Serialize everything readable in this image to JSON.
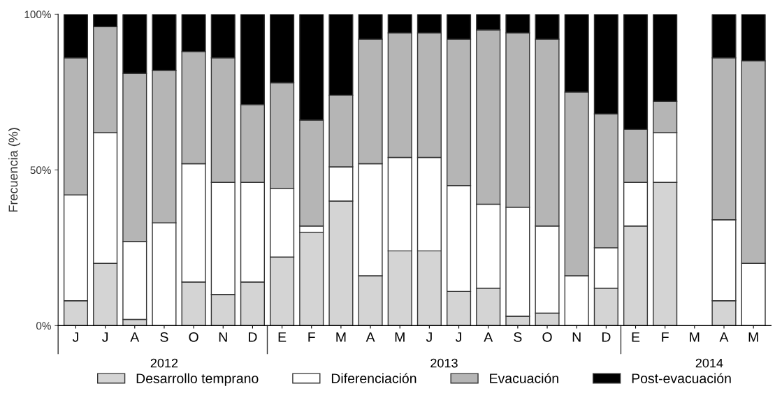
{
  "chart_data": {
    "type": "bar",
    "stacked": true,
    "ylabel": "Frecuencia (%)",
    "categories": [
      "J",
      "J",
      "A",
      "S",
      "O",
      "N",
      "D",
      "E",
      "F",
      "M",
      "A",
      "M",
      "J",
      "J",
      "A",
      "S",
      "O",
      "N",
      "D",
      "E",
      "F",
      "M",
      "A",
      "M"
    ],
    "series": [
      {
        "name": "Desarrollo temprano",
        "color": "#d4d4d4",
        "values": [
          8,
          20,
          2,
          0,
          14,
          10,
          14,
          22,
          30,
          40,
          16,
          24,
          24,
          11,
          12,
          3,
          4,
          0,
          12,
          32,
          46,
          null,
          8,
          0
        ]
      },
      {
        "name": "Diferenciación",
        "color": "#ffffff",
        "values": [
          34,
          42,
          25,
          33,
          38,
          36,
          32,
          22,
          2,
          11,
          36,
          30,
          30,
          34,
          27,
          35,
          28,
          16,
          13,
          14,
          16,
          null,
          26,
          20
        ]
      },
      {
        "name": "Evacuación",
        "color": "#b5b5b5",
        "values": [
          44,
          34,
          54,
          49,
          36,
          40,
          25,
          34,
          34,
          23,
          40,
          40,
          40,
          47,
          56,
          56,
          60,
          59,
          43,
          17,
          10,
          null,
          52,
          65
        ]
      },
      {
        "name": "Post-evacuación",
        "color": "#000000",
        "values": [
          14,
          4,
          19,
          18,
          12,
          14,
          29,
          22,
          34,
          26,
          8,
          6,
          6,
          8,
          5,
          6,
          8,
          25,
          32,
          37,
          28,
          null,
          14,
          15
        ]
      }
    ],
    "ylim": [
      0,
      100
    ],
    "yticks": [
      {
        "value": 0,
        "label": "0%"
      },
      {
        "value": 50,
        "label": "50%"
      },
      {
        "value": 100,
        "label": "100%"
      }
    ],
    "grid": false,
    "legend": "bottom",
    "annotations": [
      "2012",
      "2013",
      "2014"
    ]
  }
}
